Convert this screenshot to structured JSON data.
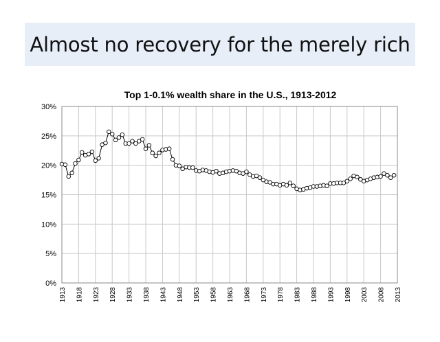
{
  "slide": {
    "title": "Almost no recovery for the merely rich"
  },
  "chart_data": {
    "type": "line",
    "title": "Top 1-0.1% wealth share in the U.S., 1913-2012",
    "xlabel": "",
    "ylabel": "",
    "ylim": [
      0,
      30
    ],
    "xlim": [
      1913,
      2013
    ],
    "y_ticks": [
      "0%",
      "5%",
      "10%",
      "15%",
      "20%",
      "25%",
      "30%"
    ],
    "x_ticks": [
      "1913",
      "1918",
      "1923",
      "1928",
      "1933",
      "1938",
      "1943",
      "1948",
      "1953",
      "1958",
      "1963",
      "1968",
      "1973",
      "1978",
      "1983",
      "1988",
      "1993",
      "1998",
      "2003",
      "2008",
      "2013"
    ],
    "grid": true,
    "legend": "none",
    "marker": "open-circle",
    "colors": {
      "line": "#000000",
      "marker_fill": "#ffffff",
      "grid": "#c8c8c8"
    },
    "series": [
      {
        "x": [
          1913,
          1914,
          1915,
          1916,
          1917,
          1918,
          1919,
          1920,
          1921,
          1922,
          1923,
          1924,
          1925,
          1926,
          1927,
          1928,
          1929,
          1930,
          1931,
          1932,
          1933,
          1934,
          1935,
          1936,
          1937,
          1938,
          1939,
          1940,
          1941,
          1942,
          1943,
          1944,
          1945,
          1946,
          1947,
          1948,
          1949,
          1950,
          1951,
          1952,
          1953,
          1954,
          1955,
          1956,
          1957,
          1958,
          1959,
          1960,
          1961,
          1962,
          1963,
          1964,
          1965,
          1966,
          1967,
          1968,
          1969,
          1970,
          1971,
          1972,
          1973,
          1974,
          1975,
          1976,
          1977,
          1978,
          1979,
          1980,
          1981,
          1982,
          1983,
          1984,
          1985,
          1986,
          1987,
          1988,
          1989,
          1990,
          1991,
          1992,
          1993,
          1994,
          1995,
          1996,
          1997,
          1998,
          1999,
          2000,
          2001,
          2002,
          2003,
          2004,
          2005,
          2006,
          2007,
          2008,
          2009,
          2010,
          2011,
          2012
        ],
        "values": [
          20.2,
          20.1,
          18.1,
          18.7,
          20.3,
          20.9,
          22.2,
          21.7,
          21.9,
          22.3,
          20.8,
          21.2,
          23.5,
          23.8,
          25.7,
          25.3,
          24.3,
          24.7,
          25.2,
          23.7,
          23.7,
          24.1,
          23.7,
          24.1,
          24.4,
          22.8,
          23.4,
          22.1,
          21.6,
          22.1,
          22.6,
          22.7,
          22.8,
          21.0,
          20.0,
          19.9,
          19.4,
          19.7,
          19.6,
          19.6,
          19.1,
          19.0,
          19.2,
          19.1,
          18.9,
          18.8,
          19.0,
          18.6,
          18.7,
          18.9,
          19.0,
          19.1,
          19.0,
          18.7,
          18.6,
          18.9,
          18.4,
          18.1,
          18.2,
          17.9,
          17.5,
          17.2,
          17.1,
          16.8,
          16.8,
          16.6,
          16.8,
          16.6,
          17.0,
          16.5,
          16.0,
          15.8,
          15.9,
          16.1,
          16.2,
          16.4,
          16.4,
          16.5,
          16.6,
          16.5,
          16.9,
          16.9,
          17.0,
          17.0,
          17.0,
          17.3,
          17.7,
          18.2,
          18.0,
          17.6,
          17.3,
          17.5,
          17.7,
          17.9,
          18.0,
          18.1,
          18.6,
          18.3,
          17.9,
          18.3
        ]
      }
    ]
  }
}
